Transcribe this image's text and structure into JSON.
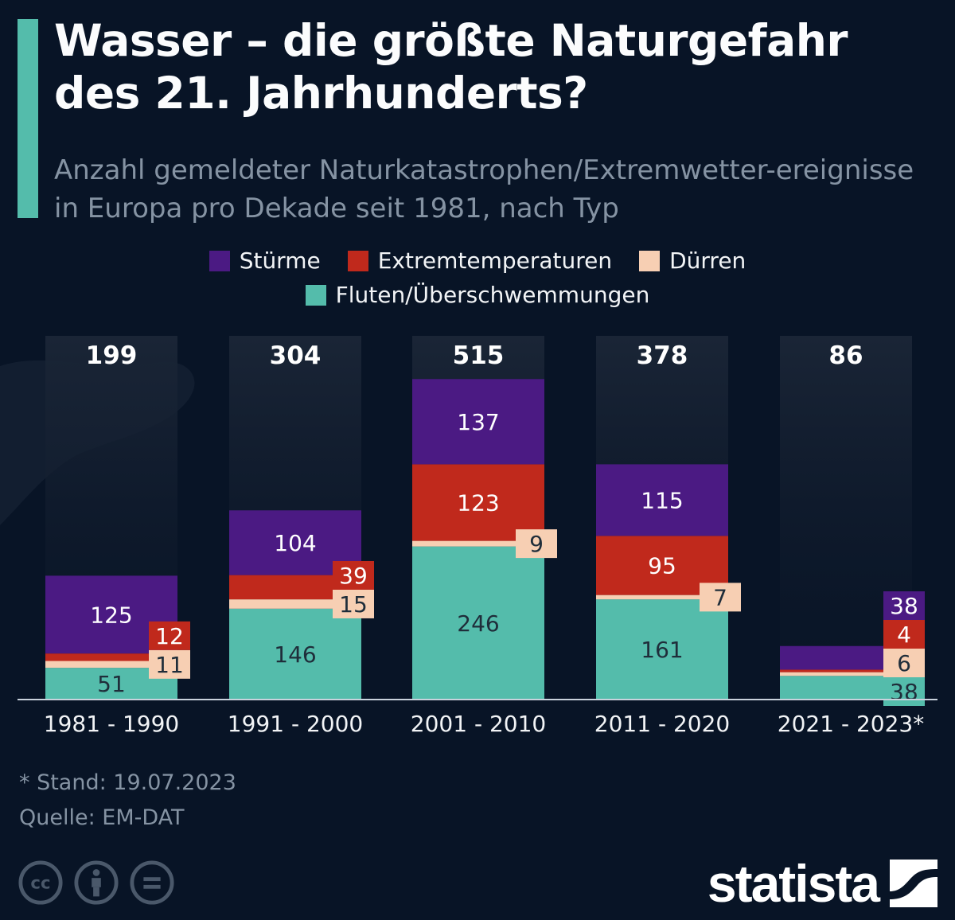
{
  "header": {
    "title": "Wasser – die größte Naturgefahr des 21. Jahrhunderts?",
    "subtitle": "Anzahl gemeldeter Naturkatastrophen/Extremwetter-ereignisse in Europa pro Dekade seit 1981, nach Typ"
  },
  "legend": {
    "items": [
      {
        "label": "Stürme",
        "color": "#4b1a83"
      },
      {
        "label": "Extremtemperaturen",
        "color": "#c0291c"
      },
      {
        "label": "Dürren",
        "color": "#f7cfb3"
      },
      {
        "label": "Fluten/Überschwemmungen",
        "color": "#54bcab"
      }
    ]
  },
  "chart_data": {
    "type": "bar",
    "stacked": true,
    "title": "Wasser – die größte Naturgefahr des 21. Jahrhunderts?",
    "subtitle": "Anzahl gemeldeter Naturkatastrophen/Extremwetterereignisse in Europa pro Dekade seit 1981, nach Typ",
    "xlabel": "",
    "ylabel": "",
    "ylim": [
      0,
      515
    ],
    "grid": false,
    "legend_position": "top-center",
    "categories": [
      "1981 - 1990",
      "1991 - 2000",
      "2001 - 2010",
      "2011 - 2020",
      "2021 - 2023*"
    ],
    "totals": [
      199,
      304,
      515,
      378,
      86
    ],
    "series": [
      {
        "name": "Fluten/Überschwemmungen",
        "color": "#54bcab",
        "values": [
          51,
          146,
          246,
          161,
          38
        ]
      },
      {
        "name": "Dürren",
        "color": "#f7cfb3",
        "values": [
          11,
          15,
          9,
          7,
          6
        ]
      },
      {
        "name": "Extremtemperaturen",
        "color": "#c0291c",
        "values": [
          12,
          39,
          123,
          95,
          4
        ]
      },
      {
        "name": "Stürme",
        "color": "#4b1a83",
        "values": [
          125,
          104,
          137,
          115,
          38
        ]
      }
    ]
  },
  "footer": {
    "note": "* Stand: 19.07.2023",
    "source": "Quelle: EM-DAT",
    "license_icons": [
      "cc-icon",
      "attribution-icon",
      "no-derivatives-icon"
    ],
    "brand": "statista"
  }
}
